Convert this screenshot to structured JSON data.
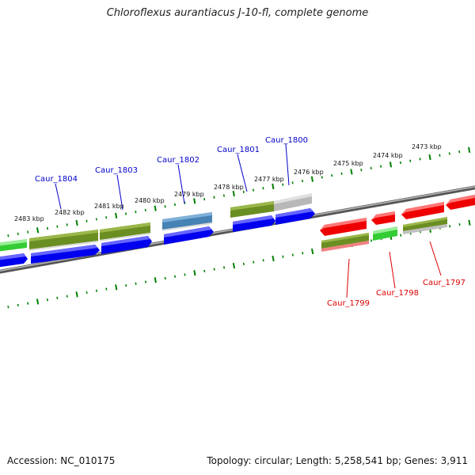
{
  "title": "Chloroflexus aurantiacus J-10-fl, complete genome",
  "footer": {
    "accession": "Accession: NC_010175",
    "summary": "Topology: circular; Length: 5,258,541 bp; Genes: 3,911"
  },
  "colors": {
    "forward_label": "#0000cc",
    "reverse_label": "#dd0000",
    "backbone": "#777777",
    "tick": "#008000",
    "blue_cds": "#0000ee",
    "olive_cds": "#6b8e23",
    "green_cds": "#33cc33",
    "red_cds": "#ee0000",
    "grey_cds": "#b0b0b0",
    "steel_cds": "#4682b4"
  },
  "scale_labels": [
    "2483 kbp",
    "2482 kbp",
    "2481 kbp",
    "2480 kbp",
    "2479 kbp",
    "2478 kbp",
    "2477 kbp",
    "2476 kbp",
    "2475 kbp",
    "2474 kbp",
    "2473 kbp"
  ],
  "gene_labels": {
    "forward": [
      "Caur_1804",
      "Caur_1803",
      "Caur_1802",
      "Caur_1801",
      "Caur_1800"
    ],
    "reverse": [
      "Caur_1799",
      "Caur_1798",
      "Caur_1797"
    ]
  }
}
